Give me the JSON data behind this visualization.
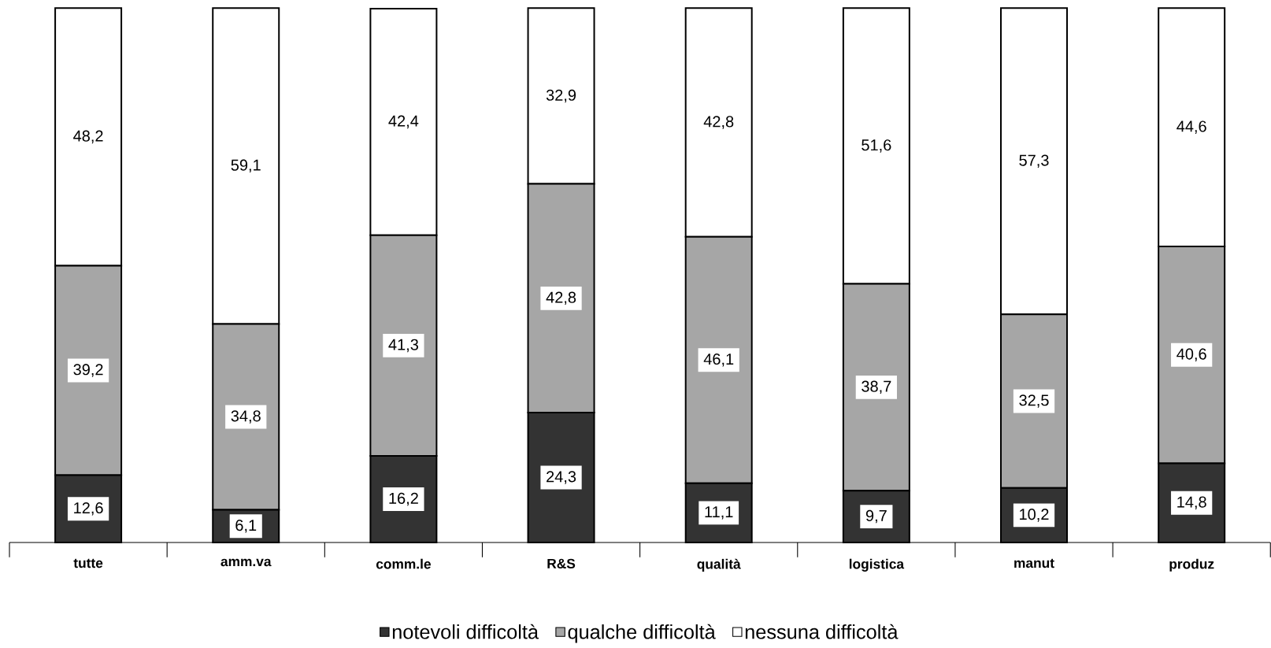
{
  "chart_data": {
    "type": "bar",
    "stacked": true,
    "legend": "bottom",
    "categories": [
      "tutte",
      "amm.va",
      "comm.le",
      "R&S",
      "qualità",
      "logistica",
      "manut",
      "produz"
    ],
    "series": [
      {
        "name": "notevoli difficoltà",
        "color": "#333333",
        "values": [
          12.6,
          6.1,
          16.2,
          24.3,
          11.1,
          9.7,
          10.2,
          14.8
        ],
        "value_labels": [
          "12,6",
          "6,1",
          "16,2",
          "24,3",
          "11,1",
          "9,7",
          "10,2",
          "14,8"
        ]
      },
      {
        "name": "qualche difficoltà",
        "color": "#a6a6a6",
        "values": [
          39.2,
          34.8,
          41.3,
          42.8,
          46.1,
          38.7,
          32.5,
          40.6
        ],
        "value_labels": [
          "39,2",
          "34,8",
          "41,3",
          "42,8",
          "46,1",
          "38,7",
          "32,5",
          "40,6"
        ]
      },
      {
        "name": "nessuna difficoltà",
        "color": "#ffffff",
        "values": [
          48.2,
          59.1,
          42.4,
          32.9,
          42.8,
          51.6,
          57.3,
          44.6
        ],
        "value_labels": [
          "48,2",
          "59,1",
          "42,4",
          "32,9",
          "42,8",
          "51,6",
          "57,3",
          "44,6"
        ]
      }
    ]
  }
}
